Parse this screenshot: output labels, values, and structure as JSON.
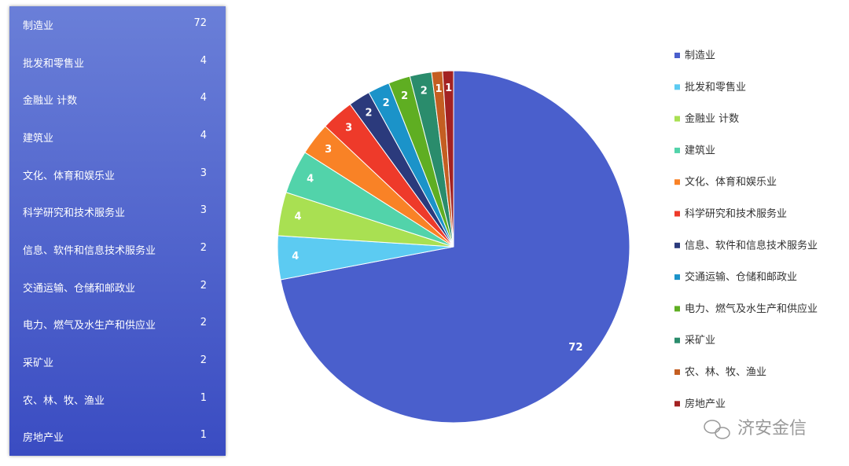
{
  "chart_data": {
    "type": "pie",
    "categories": [
      "制造业",
      "批发和零售业",
      "金融业 计数",
      "建筑业",
      "文化、体育和娱乐业",
      "科学研究和技术服务业",
      "信息、软件和信息技术服务业",
      "交通运输、仓储和邮政业",
      "电力、燃气及水生产和供应业",
      "采矿业",
      "农、林、牧、渔业",
      "房地产业"
    ],
    "values": [
      72,
      4,
      4,
      4,
      3,
      3,
      2,
      2,
      2,
      2,
      1,
      1
    ],
    "colors": [
      "#4a5fcc",
      "#5ccbf2",
      "#a9e052",
      "#52d3aa",
      "#f98226",
      "#ee3a2a",
      "#2b3a7c",
      "#1b93c9",
      "#5fae22",
      "#2a8c6c",
      "#c45e22",
      "#a32222"
    ]
  },
  "watermark": "济安金信"
}
